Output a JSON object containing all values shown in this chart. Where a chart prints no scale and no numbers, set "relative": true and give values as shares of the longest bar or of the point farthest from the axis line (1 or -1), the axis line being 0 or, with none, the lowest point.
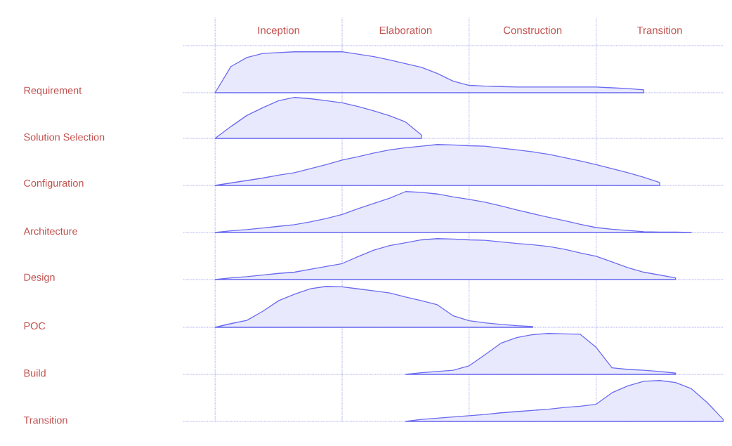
{
  "chart_data": [
    {
      "type": "area",
      "relative": true,
      "grid": true,
      "ylabel": "Requirement",
      "color": "#6b6bf0",
      "tick_labels": "x",
      "categories": [
        null,
        null,
        null,
        null,
        null,
        null,
        "Inception",
        null,
        null,
        null,
        null,
        null,
        null,
        null,
        "Elaboration",
        null,
        null,
        null,
        null,
        null,
        null,
        null,
        "Construction",
        null,
        null,
        null,
        null,
        null,
        null,
        null,
        "Transition",
        null,
        null,
        null,
        null
      ],
      "values": [
        null,
        null,
        0,
        0.64,
        0.86,
        0.96,
        0.98,
        1,
        1,
        1,
        1,
        0.94,
        0.88,
        0.8,
        0.71,
        0.62,
        0.47,
        0.28,
        0.18,
        0.16,
        0.15,
        0.14,
        0.14,
        0.14,
        0.14,
        0.14,
        0.14,
        0.12,
        0.1,
        0.07,
        null,
        null,
        null,
        null,
        null
      ]
    },
    {
      "type": "area",
      "relative": true,
      "grid": true,
      "ylabel": "Solution Selection",
      "color": "#6b6bf0",
      "tick_labels": false,
      "categories": [
        null,
        null,
        null,
        null,
        null,
        null,
        null,
        null,
        null,
        null,
        null,
        null,
        null,
        null,
        null,
        null,
        null,
        null,
        null,
        null,
        null,
        null,
        null,
        null,
        null,
        null,
        null,
        null,
        null,
        null,
        null,
        null,
        null,
        null,
        null
      ],
      "values": [
        null,
        null,
        0,
        0.29,
        0.56,
        0.75,
        0.92,
        1,
        0.97,
        0.92,
        0.87,
        0.78,
        0.67,
        0.55,
        0.4,
        0.08,
        null,
        null,
        null,
        null,
        null,
        null,
        null,
        null,
        null,
        null,
        null,
        null,
        null,
        null,
        null,
        null,
        null,
        null,
        null
      ]
    },
    {
      "type": "area",
      "relative": true,
      "grid": true,
      "ylabel": "Configuration",
      "color": "#6b6bf0",
      "tick_labels": false,
      "categories": [
        null,
        null,
        null,
        null,
        null,
        null,
        null,
        null,
        null,
        null,
        null,
        null,
        null,
        null,
        null,
        null,
        null,
        null,
        null,
        null,
        null,
        null,
        null,
        null,
        null,
        null,
        null,
        null,
        null,
        null,
        null,
        null,
        null,
        null,
        null
      ],
      "values": [
        null,
        null,
        0,
        0.06,
        0.12,
        0.18,
        0.25,
        0.31,
        0.41,
        0.51,
        0.62,
        0.7,
        0.79,
        0.87,
        0.92,
        0.96,
        1,
        0.99,
        0.97,
        0.96,
        0.91,
        0.87,
        0.82,
        0.76,
        0.68,
        0.6,
        0.51,
        0.41,
        0.31,
        0.2,
        0.07,
        null,
        null,
        null,
        null
      ]
    },
    {
      "type": "area",
      "relative": true,
      "grid": true,
      "ylabel": "Architecture",
      "color": "#6b6bf0",
      "tick_labels": false,
      "categories": [
        null,
        null,
        null,
        null,
        null,
        null,
        null,
        null,
        null,
        null,
        null,
        null,
        null,
        null,
        null,
        null,
        null,
        null,
        null,
        null,
        null,
        null,
        null,
        null,
        null,
        null,
        null,
        null,
        null,
        null,
        null,
        null,
        null,
        null,
        null
      ],
      "values": [
        null,
        null,
        0,
        0.04,
        0.07,
        0.11,
        0.15,
        0.19,
        0.26,
        0.34,
        0.44,
        0.58,
        0.71,
        0.84,
        1,
        0.98,
        0.94,
        0.87,
        0.81,
        0.74,
        0.65,
        0.55,
        0.46,
        0.37,
        0.29,
        0.2,
        0.12,
        0.08,
        0.05,
        0.02,
        0.01,
        0.01,
        0,
        null,
        null
      ]
    },
    {
      "type": "area",
      "relative": true,
      "grid": true,
      "ylabel": "Design",
      "color": "#6b6bf0",
      "tick_labels": false,
      "categories": [
        null,
        null,
        null,
        null,
        null,
        null,
        null,
        null,
        null,
        null,
        null,
        null,
        null,
        null,
        null,
        null,
        null,
        null,
        null,
        null,
        null,
        null,
        null,
        null,
        null,
        null,
        null,
        null,
        null,
        null,
        null,
        null,
        null,
        null,
        null
      ],
      "values": [
        null,
        null,
        0,
        0.04,
        0.07,
        0.11,
        0.15,
        0.18,
        0.25,
        0.32,
        0.39,
        0.56,
        0.72,
        0.83,
        0.9,
        0.97,
        1,
        0.99,
        0.97,
        0.96,
        0.92,
        0.88,
        0.85,
        0.81,
        0.74,
        0.65,
        0.57,
        0.43,
        0.29,
        0.18,
        0.11,
        0.04,
        null,
        null,
        null
      ]
    },
    {
      "type": "area",
      "relative": true,
      "grid": true,
      "ylabel": "POC",
      "color": "#6b6bf0",
      "tick_labels": false,
      "categories": [
        null,
        null,
        null,
        null,
        null,
        null,
        null,
        null,
        null,
        null,
        null,
        null,
        null,
        null,
        null,
        null,
        null,
        null,
        null,
        null,
        null,
        null,
        null,
        null,
        null,
        null,
        null,
        null,
        null,
        null,
        null,
        null,
        null,
        null,
        null
      ],
      "values": [
        null,
        null,
        0,
        0.09,
        0.17,
        0.39,
        0.65,
        0.81,
        0.94,
        1,
        0.99,
        0.94,
        0.89,
        0.84,
        0.74,
        0.65,
        0.55,
        0.28,
        0.16,
        0.11,
        0.07,
        0.04,
        0.02,
        null,
        null,
        null,
        null,
        null,
        null,
        null,
        null,
        null,
        null,
        null,
        null
      ]
    },
    {
      "type": "area",
      "relative": true,
      "grid": true,
      "ylabel": "Build",
      "color": "#6b6bf0",
      "tick_labels": false,
      "categories": [
        null,
        null,
        null,
        null,
        null,
        null,
        null,
        null,
        null,
        null,
        null,
        null,
        null,
        null,
        null,
        null,
        null,
        null,
        null,
        null,
        null,
        null,
        null,
        null,
        null,
        null,
        null,
        null,
        null,
        null,
        null,
        null,
        null,
        null,
        null
      ],
      "values": [
        null,
        null,
        null,
        null,
        null,
        null,
        null,
        null,
        null,
        null,
        null,
        null,
        null,
        null,
        0,
        0.04,
        0.07,
        0.1,
        0.21,
        0.48,
        0.76,
        0.9,
        0.97,
        1,
        0.99,
        0.98,
        0.66,
        0.16,
        0.12,
        0.1,
        0.07,
        0.03,
        null,
        null,
        null
      ]
    },
    {
      "type": "area",
      "relative": true,
      "grid": true,
      "ylabel": "Transition",
      "color": "#6b6bf0",
      "tick_labels": false,
      "categories": [
        null,
        null,
        null,
        null,
        null,
        null,
        null,
        null,
        null,
        null,
        null,
        null,
        null,
        null,
        null,
        null,
        null,
        null,
        null,
        null,
        null,
        null,
        null,
        null,
        null,
        null,
        null,
        null,
        null,
        null,
        null,
        null,
        null,
        null,
        null
      ],
      "values": [
        null,
        null,
        null,
        null,
        null,
        null,
        null,
        null,
        null,
        null,
        null,
        null,
        null,
        null,
        0,
        0.05,
        0.08,
        0.11,
        0.14,
        0.17,
        0.21,
        0.24,
        0.27,
        0.3,
        0.34,
        0.37,
        0.42,
        0.7,
        0.87,
        0.98,
        1,
        0.95,
        0.8,
        0.46,
        0.05
      ]
    }
  ]
}
